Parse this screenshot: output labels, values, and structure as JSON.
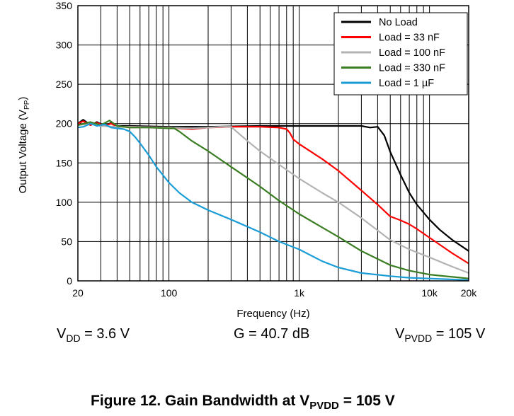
{
  "chart_data": {
    "type": "line",
    "title": "",
    "xlabel": "Frequency (Hz)",
    "ylabel": {
      "main": "Output Voltage (V",
      "sub": "PP",
      "end": ")"
    },
    "xscale": "log",
    "xlim": [
      20,
      20000
    ],
    "ylim": [
      0,
      350
    ],
    "grid": true,
    "legend_position": "top-right",
    "xticks": [
      {
        "value": 20,
        "label": "20"
      },
      {
        "value": 100,
        "label": "100"
      },
      {
        "value": 1000,
        "label": "1k"
      },
      {
        "value": 10000,
        "label": "10k"
      },
      {
        "value": 20000,
        "label": "20k"
      }
    ],
    "yticks": [
      {
        "value": 0,
        "label": "0"
      },
      {
        "value": 50,
        "label": "50"
      },
      {
        "value": 100,
        "label": "100"
      },
      {
        "value": 150,
        "label": "150"
      },
      {
        "value": 200,
        "label": "200"
      },
      {
        "value": 250,
        "label": "250"
      },
      {
        "value": 300,
        "label": "300"
      },
      {
        "value": 350,
        "label": "350"
      }
    ],
    "series": [
      {
        "name": "No Load",
        "color": "#000000",
        "x": [
          20,
          22,
          25,
          28,
          32,
          36,
          40,
          50,
          100,
          200,
          500,
          1000,
          2000,
          3000,
          3500,
          4000,
          4500,
          5000,
          6000,
          7000,
          8000,
          10000,
          12000,
          15000,
          20000
        ],
        "y": [
          200,
          205,
          198,
          202,
          197,
          201,
          197,
          197,
          196,
          196,
          197,
          197,
          197,
          197,
          195,
          196,
          185,
          164,
          135,
          112,
          97,
          78,
          65,
          52,
          38
        ]
      },
      {
        "name": "Load = 33 nF",
        "color": "#ff0000",
        "x": [
          20,
          22,
          25,
          28,
          32,
          36,
          40,
          50,
          100,
          150,
          200,
          300,
          500,
          700,
          800,
          850,
          900,
          1000,
          1500,
          2000,
          3000,
          4000,
          5000,
          6000,
          7000,
          8000,
          10000,
          12000,
          15000,
          20000
        ],
        "y": [
          200,
          203,
          198,
          201,
          197,
          200,
          196,
          196,
          195,
          193,
          195,
          196,
          196,
          195,
          193,
          188,
          180,
          174,
          155,
          140,
          115,
          97,
          82,
          77,
          72,
          66,
          55,
          46,
          35,
          22
        ]
      },
      {
        "name": "Load = 100 nF",
        "color": "#b3b3b3",
        "x": [
          20,
          25,
          30,
          40,
          50,
          100,
          150,
          200,
          250,
          300,
          400,
          500,
          700,
          1000,
          1500,
          2000,
          3000,
          5000,
          7000,
          10000,
          15000,
          20000
        ],
        "y": [
          198,
          200,
          197,
          196,
          196,
          195,
          194,
          195,
          196,
          196,
          178,
          165,
          148,
          130,
          112,
          100,
          80,
          52,
          40,
          30,
          18,
          10
        ]
      },
      {
        "name": "Load = 330 nF",
        "color": "#3a7d22",
        "x": [
          20,
          25,
          30,
          35,
          40,
          50,
          70,
          100,
          110,
          120,
          150,
          200,
          300,
          500,
          700,
          1000,
          1500,
          2000,
          3000,
          5000,
          7000,
          10000,
          15000,
          20000
        ],
        "y": [
          198,
          202,
          198,
          204,
          197,
          195,
          195,
          194,
          194,
          190,
          178,
          165,
          145,
          120,
          102,
          85,
          68,
          56,
          38,
          20,
          13,
          8,
          5,
          3
        ]
      },
      {
        "name": "Load = 1 µF",
        "color": "#1a9dd6",
        "x": [
          20,
          22,
          25,
          28,
          32,
          36,
          40,
          45,
          50,
          55,
          60,
          70,
          80,
          100,
          120,
          150,
          200,
          300,
          500,
          700,
          1000,
          1500,
          2000,
          3000,
          5000,
          7000,
          10000,
          20000
        ],
        "y": [
          195,
          196,
          200,
          197,
          199,
          195,
          194,
          193,
          190,
          183,
          175,
          160,
          145,
          125,
          112,
          100,
          90,
          78,
          62,
          50,
          40,
          25,
          17,
          10,
          6,
          4,
          3,
          1
        ]
      }
    ],
    "annotations": [
      {
        "main": "V",
        "sub": "DD",
        "rest": " = 3.6 V"
      },
      {
        "main": "G = 40.7 dB",
        "sub": "",
        "rest": ""
      },
      {
        "main": "V",
        "sub": "PVDD",
        "rest": " = 105 V"
      }
    ]
  },
  "caption": {
    "main": "Figure 12. Gain Bandwidth at V",
    "sub": "PVDD",
    "rest": " = 105 V"
  }
}
